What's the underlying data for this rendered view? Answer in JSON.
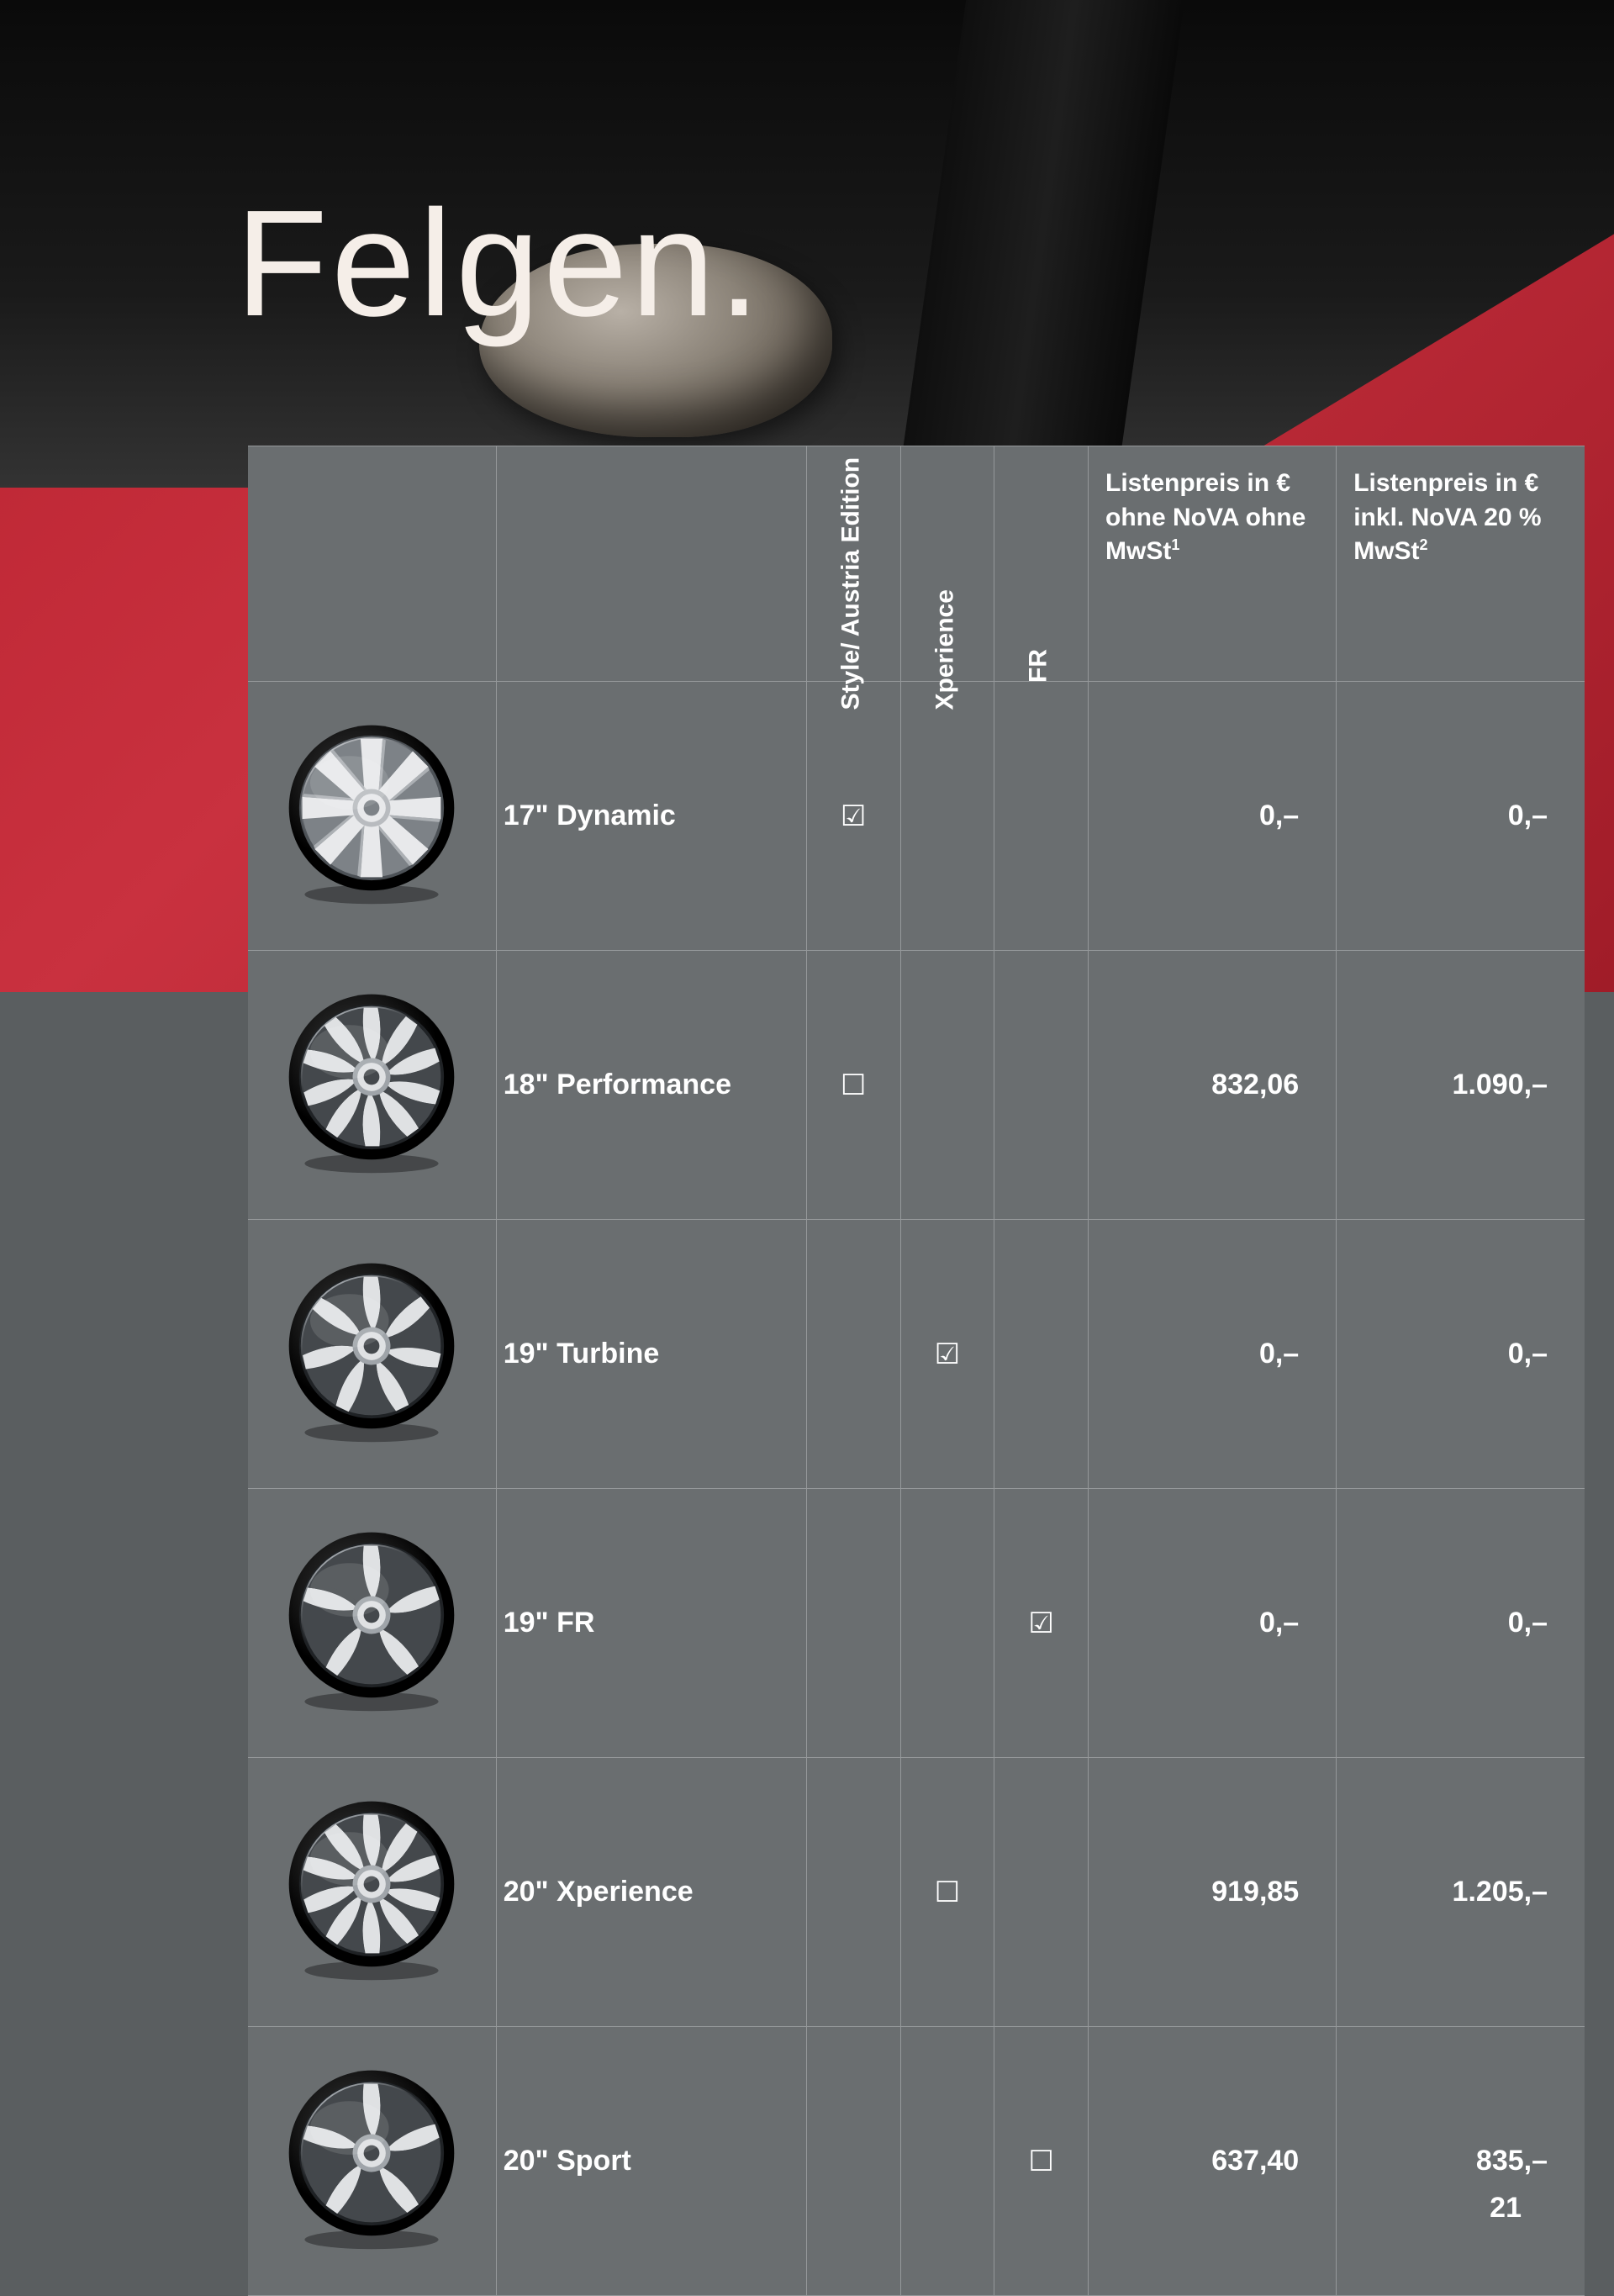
{
  "page": {
    "title": "Felgen.",
    "number": "21"
  },
  "headers": {
    "trim1": "Style/\nAustria Edition",
    "trim2": "Xperience",
    "trim3": "FR",
    "price1": "Listenpreis in € ohne NoVA ohne MwSt¹",
    "price2": "Listenpreis in € inkl. NoVA 20 % MwSt²"
  },
  "symbols": {
    "checked": "☑",
    "unchecked": "☐",
    "empty": ""
  },
  "colors": {
    "table_bg": "#6a6e70",
    "border": "#95989a",
    "text": "#ffffff",
    "page_bg": "#5a5e60",
    "accent_red": "#b8222f"
  },
  "wheel_palettes": {
    "silver": {
      "light": "#e8e9eb",
      "mid": "#b8bbbf",
      "dark": "#7d8287",
      "deep": "#4c5156"
    },
    "machined": {
      "light": "#dfe1e3",
      "mid": "#9fa4a9",
      "dark": "#44484c",
      "deep": "#1f2225"
    }
  },
  "rows": [
    {
      "name": "17\" Dynamic",
      "palette": "silver",
      "spokes": 8,
      "blade": false,
      "trim1": "checked",
      "trim2": "empty",
      "trim3": "empty",
      "price1": "0,–",
      "price2": "0,–"
    },
    {
      "name": "18\" Performance",
      "palette": "machined",
      "spokes": 10,
      "blade": true,
      "trim1": "unchecked",
      "trim2": "empty",
      "trim3": "empty",
      "price1": "832,06",
      "price2": "1.090,–"
    },
    {
      "name": "19\" Turbine",
      "palette": "machined",
      "spokes": 7,
      "blade": true,
      "trim1": "empty",
      "trim2": "checked",
      "trim3": "empty",
      "price1": "0,–",
      "price2": "0,–"
    },
    {
      "name": "19\" FR",
      "palette": "machined",
      "spokes": 5,
      "blade": true,
      "trim1": "empty",
      "trim2": "empty",
      "trim3": "checked",
      "price1": "0,–",
      "price2": "0,–"
    },
    {
      "name": "20\" Xperience",
      "palette": "machined",
      "spokes": 10,
      "blade": true,
      "trim1": "empty",
      "trim2": "unchecked",
      "trim3": "empty",
      "price1": "919,85",
      "price2": "1.205,–"
    },
    {
      "name": "20\" Sport",
      "palette": "machined",
      "spokes": 5,
      "blade": true,
      "trim1": "empty",
      "trim2": "empty",
      "trim3": "unchecked",
      "price1": "637,40",
      "price2": "835,–"
    }
  ]
}
